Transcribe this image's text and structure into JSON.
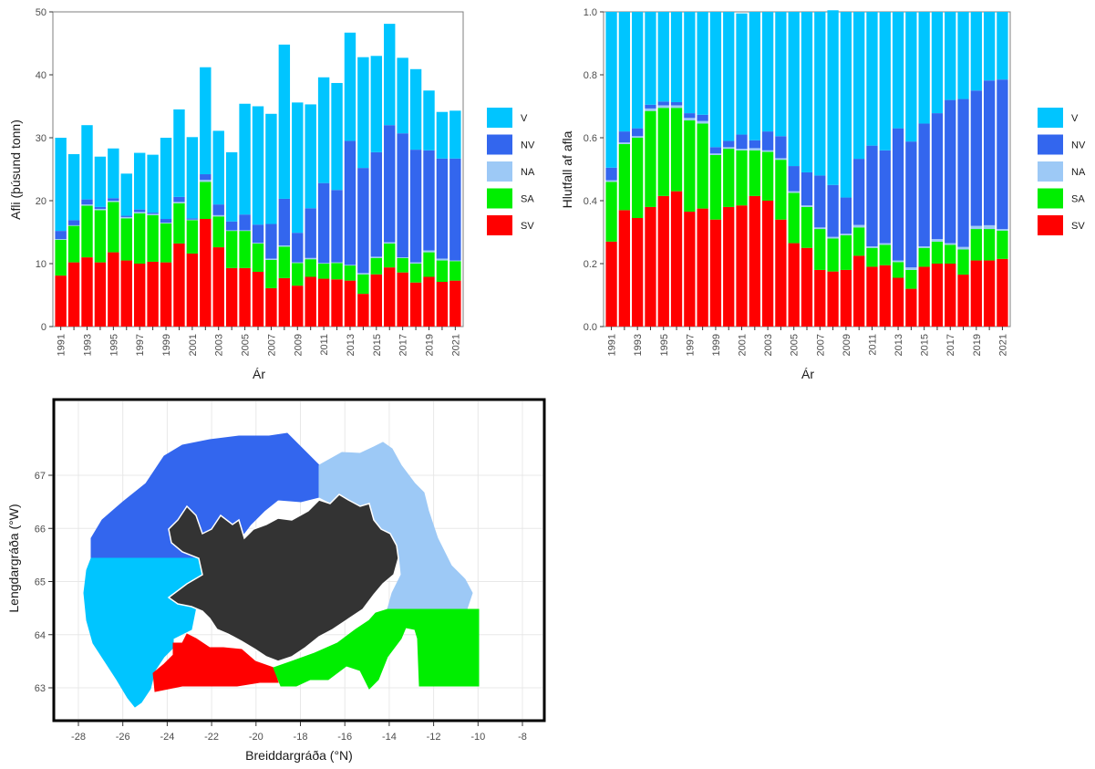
{
  "colors": {
    "V": "#00C5FF",
    "NV": "#3366EE",
    "NA": "#9DC9F6",
    "SA": "#00EE00",
    "SV": "#FF0000",
    "land": "#333333"
  },
  "legend": [
    "V",
    "NV",
    "NA",
    "SA",
    "SV"
  ],
  "chart_data": [
    {
      "type": "bar",
      "stacked": true,
      "xlabel": "Ár",
      "ylabel": "Afli (þúsund tonn)",
      "ylim": [
        0,
        50
      ],
      "yticks": [
        "0",
        "10",
        "20",
        "30",
        "40",
        "50"
      ],
      "xtick_labels": [
        "1991",
        "1993",
        "1995",
        "1997",
        "1999",
        "2001",
        "2003",
        "2005",
        "2007",
        "2009",
        "2011",
        "2013",
        "2015",
        "2017",
        "2019",
        "2021"
      ],
      "categories": [
        "1991",
        "1992",
        "1993",
        "1994",
        "1995",
        "1996",
        "1997",
        "1998",
        "1999",
        "2000",
        "2001",
        "2002",
        "2003",
        "2004",
        "2005",
        "2006",
        "2007",
        "2008",
        "2009",
        "2010",
        "2011",
        "2012",
        "2013",
        "2014",
        "2015",
        "2016",
        "2017",
        "2018",
        "2019",
        "2020",
        "2021"
      ],
      "series": [
        {
          "name": "SV",
          "values": [
            8.1,
            10.2,
            11.0,
            10.2,
            11.8,
            10.5,
            10.0,
            10.3,
            10.2,
            13.2,
            11.6,
            17.1,
            12.6,
            9.3,
            9.3,
            8.7,
            6.1,
            7.7,
            6.5,
            7.9,
            7.6,
            7.5,
            7.3,
            5.2,
            8.3,
            9.4,
            8.6,
            7.0,
            7.9,
            7.1,
            7.3
          ]
        },
        {
          "name": "SA",
          "values": [
            5.7,
            5.8,
            8.2,
            8.3,
            8.0,
            6.7,
            8.0,
            7.4,
            6.2,
            6.4,
            5.3,
            5.9,
            4.9,
            5.9,
            5.9,
            4.5,
            4.5,
            5.0,
            3.6,
            2.8,
            2.4,
            2.6,
            2.4,
            3.1,
            2.6,
            3.8,
            2.3,
            3.0,
            3.9,
            3.4,
            3.1
          ]
        },
        {
          "name": "NA",
          "values": [
            0.1,
            0.1,
            0.2,
            0.2,
            0.2,
            0.2,
            0.2,
            0.2,
            0.1,
            0.2,
            0.1,
            0.3,
            0.2,
            0.1,
            0.1,
            0.1,
            0.2,
            0.2,
            0.1,
            0.2,
            0.1,
            0.1,
            0.1,
            0.2,
            0.2,
            0.2,
            0.1,
            0.2,
            0.3,
            0.3,
            0.1
          ]
        },
        {
          "name": "NV",
          "values": [
            1.3,
            0.8,
            0.8,
            0.3,
            0.4,
            0.2,
            0.4,
            0.2,
            0.6,
            0.8,
            0.2,
            0.9,
            1.7,
            1.4,
            2.5,
            2.9,
            5.5,
            7.4,
            4.7,
            7.9,
            12.7,
            11.5,
            19.7,
            16.7,
            16.6,
            18.6,
            19.7,
            17.9,
            15.9,
            15.9,
            16.2
          ]
        },
        {
          "name": "V",
          "values": [
            14.8,
            10.5,
            11.8,
            8.0,
            7.9,
            6.7,
            9.0,
            9.2,
            12.9,
            13.9,
            12.9,
            17.0,
            11.7,
            11.0,
            17.6,
            18.8,
            17.5,
            24.5,
            20.7,
            16.5,
            16.8,
            17.0,
            17.2,
            17.6,
            15.3,
            16.1,
            12.0,
            12.8,
            9.5,
            7.4,
            7.6
          ]
        }
      ]
    },
    {
      "type": "bar",
      "stacked": true,
      "xlabel": "Ár",
      "ylabel": "Hlutfall af afla",
      "ylim": [
        0,
        1
      ],
      "yticks": [
        "0.0",
        "0.2",
        "0.4",
        "0.6",
        "0.8",
        "1.0"
      ],
      "xtick_labels": [
        "1991",
        "1993",
        "1995",
        "1997",
        "1999",
        "2001",
        "2003",
        "2005",
        "2007",
        "2009",
        "2011",
        "2013",
        "2015",
        "2017",
        "2019",
        "2021"
      ],
      "categories": [
        "1991",
        "1992",
        "1993",
        "1994",
        "1995",
        "1996",
        "1997",
        "1998",
        "1999",
        "2000",
        "2001",
        "2002",
        "2003",
        "2004",
        "2005",
        "2006",
        "2007",
        "2008",
        "2009",
        "2010",
        "2011",
        "2012",
        "2013",
        "2014",
        "2015",
        "2016",
        "2017",
        "2018",
        "2019",
        "2020",
        "2021"
      ],
      "series": [
        {
          "name": "SV",
          "values": [
            0.27,
            0.37,
            0.345,
            0.38,
            0.415,
            0.43,
            0.365,
            0.375,
            0.34,
            0.38,
            0.385,
            0.415,
            0.4,
            0.34,
            0.265,
            0.25,
            0.18,
            0.175,
            0.18,
            0.225,
            0.19,
            0.195,
            0.155,
            0.12,
            0.19,
            0.2,
            0.2,
            0.165,
            0.21,
            0.21,
            0.215
          ]
        },
        {
          "name": "SA",
          "values": [
            0.19,
            0.21,
            0.255,
            0.305,
            0.28,
            0.265,
            0.29,
            0.27,
            0.205,
            0.185,
            0.175,
            0.145,
            0.155,
            0.19,
            0.16,
            0.13,
            0.13,
            0.105,
            0.11,
            0.09,
            0.06,
            0.065,
            0.05,
            0.06,
            0.06,
            0.07,
            0.06,
            0.08,
            0.1,
            0.1,
            0.09
          ]
        },
        {
          "name": "NA",
          "values": [
            0.005,
            0.005,
            0.005,
            0.008,
            0.008,
            0.008,
            0.008,
            0.008,
            0.005,
            0.005,
            0.005,
            0.007,
            0.005,
            0.005,
            0.005,
            0.005,
            0.005,
            0.005,
            0.005,
            0.008,
            0.005,
            0.005,
            0.005,
            0.008,
            0.005,
            0.008,
            0.005,
            0.008,
            0.01,
            0.012,
            0.005
          ]
        },
        {
          "name": "NV",
          "values": [
            0.04,
            0.035,
            0.025,
            0.012,
            0.012,
            0.01,
            0.015,
            0.02,
            0.02,
            0.02,
            0.045,
            0.025,
            0.06,
            0.07,
            0.08,
            0.105,
            0.165,
            0.165,
            0.115,
            0.21,
            0.32,
            0.295,
            0.42,
            0.4,
            0.39,
            0.4,
            0.455,
            0.47,
            0.43,
            0.46,
            0.475
          ]
        },
        {
          "name": "V",
          "values": [
            0.495,
            0.38,
            0.37,
            0.295,
            0.285,
            0.287,
            0.322,
            0.327,
            0.43,
            0.41,
            0.385,
            0.408,
            0.38,
            0.395,
            0.49,
            0.51,
            0.52,
            0.555,
            0.59,
            0.467,
            0.425,
            0.44,
            0.37,
            0.412,
            0.355,
            0.322,
            0.28,
            0.277,
            0.25,
            0.218,
            0.215
          ]
        }
      ]
    },
    {
      "type": "map",
      "xlabel": "Breiddargráða (°N)",
      "ylabel": "Lengdargráða (°W)",
      "xlim": [
        -29,
        -7
      ],
      "ylim": [
        62.4,
        68.0
      ],
      "xticks": [
        -28,
        -26,
        -24,
        -22,
        -20,
        -18,
        -16,
        -14,
        -12,
        -10,
        -8
      ],
      "yticks": [
        63,
        64,
        65,
        66,
        67
      ],
      "regions": [
        "V",
        "NV",
        "NA",
        "SA",
        "SV"
      ]
    }
  ]
}
